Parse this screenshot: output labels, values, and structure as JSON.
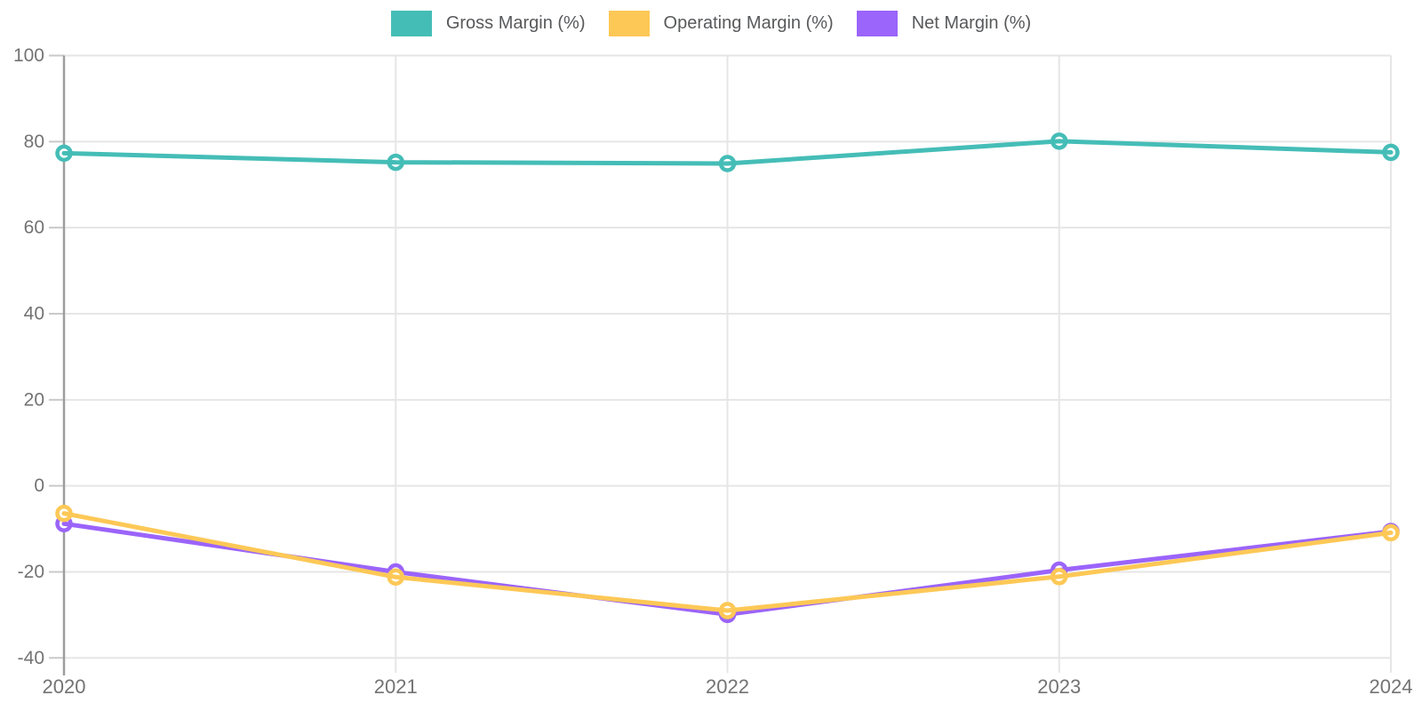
{
  "chart_data": {
    "type": "line",
    "title": "",
    "x": [
      2020,
      2021,
      2022,
      2023,
      2024
    ],
    "xtick_labels": [
      "2020",
      "2021",
      "2022",
      "2023",
      "2024"
    ],
    "yticks": [
      100,
      80,
      60,
      40,
      20,
      0,
      -20,
      -40
    ],
    "ylim": [
      -40,
      100
    ],
    "grid": true,
    "legend_position": "top",
    "series": [
      {
        "name": "Gross Margin (%)",
        "color": "#45BDB7",
        "values": [
          77.3,
          75.2,
          74.9,
          80.1,
          77.5
        ]
      },
      {
        "name": "Operating Margin (%)",
        "color": "#FDC856",
        "values": [
          -6.4,
          -21.2,
          -29.0,
          -21.1,
          -10.9
        ]
      },
      {
        "name": "Net Margin (%)",
        "color": "#9B64FA",
        "values": [
          -8.8,
          -20.0,
          -29.9,
          -19.6,
          -10.6
        ]
      }
    ],
    "colors": {
      "gridline": "#e6e6e6",
      "axis": "#9e9e9e",
      "tick": "#c9c9c9",
      "tick_label": "#737373",
      "marker_fill": "#ffffff"
    }
  }
}
